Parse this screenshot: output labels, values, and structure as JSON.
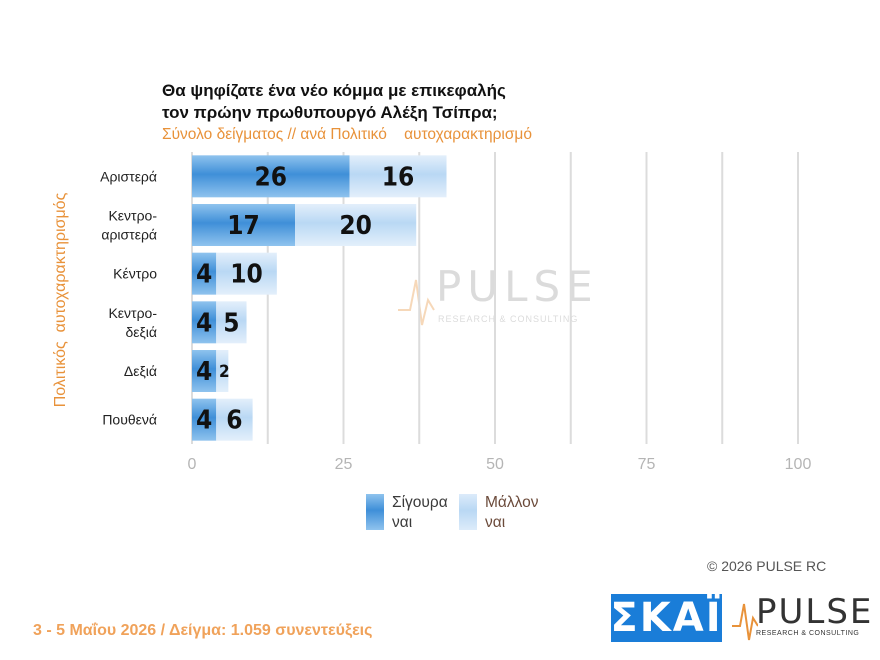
{
  "chart_data": {
    "type": "bar",
    "orientation": "horizontal",
    "stacked": true,
    "title_lines": [
      "Θα ψηφίζατε ένα νέο κόμμα με επικεφαλής",
      "τον πρώην πρωθυπουργό Αλέξη Τσίπρα;"
    ],
    "subtitle": "Σύνολο δείγματος // ανά Πολιτικό    αυτοχαρακτηρισμό",
    "ylabel": "Πολιτικός  αυτοχαρακτηρισμός",
    "categories": [
      [
        "Αριστερά"
      ],
      [
        "Κεντρο-",
        "αριστερά"
      ],
      [
        "Κέντρο"
      ],
      [
        "Κεντρο-",
        "δεξιά"
      ],
      [
        "Δεξιά"
      ],
      [
        "Πουθενά"
      ]
    ],
    "series": [
      {
        "name": [
          "Σίγουρα",
          "ναι"
        ],
        "values": [
          26,
          17,
          4,
          4,
          4,
          4
        ],
        "color": "#3f8fd8"
      },
      {
        "name": [
          "Μάλλον",
          "ναι"
        ],
        "values": [
          16,
          20,
          10,
          5,
          2,
          6
        ],
        "color": "#b9d8f4"
      }
    ],
    "xlim": [
      0,
      100
    ],
    "xticks": [
      "0",
      "25",
      "50",
      "75",
      "100"
    ],
    "grid": true,
    "legend_position": "bottom"
  },
  "copyright": "©  2026  PULSE RC",
  "footer": "3 - 5  Μαΐου 2026  /  Δείγμα:  1.059 συνεντεύξεις",
  "logos": {
    "skai": "ΣΚΑΪ",
    "pulse": "PULSE",
    "pulse_sub": "RESEARCH & CONSULTING"
  }
}
